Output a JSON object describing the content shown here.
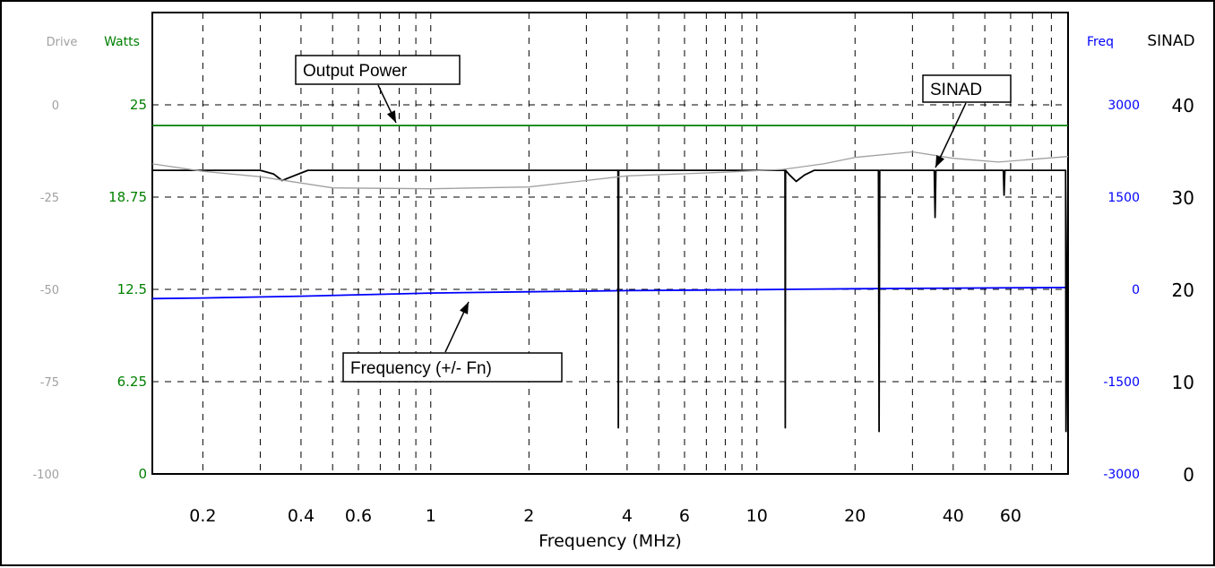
{
  "chart_data": {
    "type": "line",
    "xlabel": "Frequency (MHz)",
    "x_scale": "log",
    "xlim": [
      0.14,
      90
    ],
    "x_ticks": [
      {
        "value": 0.2,
        "label": "0.2"
      },
      {
        "value": 0.4,
        "label": "0.4"
      },
      {
        "value": 0.6,
        "label": "0.6"
      },
      {
        "value": 1,
        "label": "1"
      },
      {
        "value": 2,
        "label": "2"
      },
      {
        "value": 4,
        "label": "4"
      },
      {
        "value": 6,
        "label": "6"
      },
      {
        "value": 10,
        "label": "10"
      },
      {
        "value": 20,
        "label": "20"
      },
      {
        "value": 40,
        "label": "40"
      },
      {
        "value": 60,
        "label": "60"
      }
    ],
    "x_grid_minor": [
      0.3,
      0.5,
      0.7,
      0.8,
      0.9,
      3,
      5,
      7,
      8,
      9,
      30,
      50,
      70,
      80
    ],
    "grid": true,
    "axes": {
      "drive": {
        "label": "Drive",
        "ticks": [
          "0",
          "-25",
          "-50",
          "-75",
          "-100"
        ],
        "color": "#a0a0a0"
      },
      "watts": {
        "label": "Watts",
        "ylim": [
          0,
          31.25
        ],
        "ticks": [
          "25",
          "18.75",
          "12.5",
          "6.25",
          "0"
        ],
        "color": "#008000"
      },
      "freq": {
        "label": "Freq",
        "ylim": [
          -3000,
          4500
        ],
        "ticks": [
          "3000",
          "1500",
          "0",
          "-1500",
          "-3000"
        ],
        "color": "#0000ff"
      },
      "sinad": {
        "label": "SINAD",
        "ylim": [
          0,
          50
        ],
        "ticks": [
          "40",
          "30",
          "20",
          "10",
          "0"
        ],
        "color": "#000000"
      }
    },
    "series": [
      {
        "key": "output_power",
        "axis": "watts",
        "color": "#008000",
        "points": [
          [
            0.14,
            23.6
          ],
          [
            90,
            23.6
          ]
        ]
      },
      {
        "key": "frequency",
        "axis": "freq",
        "color": "#0000ff",
        "points": [
          [
            0.14,
            -150
          ],
          [
            0.2,
            -140
          ],
          [
            0.4,
            -110
          ],
          [
            0.7,
            -80
          ],
          [
            1,
            -60
          ],
          [
            2,
            -40
          ],
          [
            4,
            -20
          ],
          [
            10,
            -5
          ],
          [
            20,
            10
          ],
          [
            40,
            20
          ],
          [
            90,
            30
          ]
        ]
      },
      {
        "key": "sinad_black",
        "axis": "sinad",
        "color": "#000000",
        "points": [
          [
            0.14,
            32.9
          ],
          [
            0.3,
            32.9
          ],
          [
            0.33,
            32.5
          ],
          [
            0.35,
            31.8
          ],
          [
            0.38,
            32.3
          ],
          [
            0.42,
            32.9
          ],
          [
            3.0,
            32.9
          ],
          [
            3.75,
            32.9
          ],
          [
            3.76,
            5
          ],
          [
            3.77,
            32.9
          ],
          [
            12.0,
            32.9
          ],
          [
            12.2,
            32.9
          ],
          [
            12.22,
            5
          ],
          [
            12.24,
            32.9
          ],
          [
            12.6,
            32.4
          ],
          [
            13.2,
            31.7
          ],
          [
            14.0,
            32.4
          ],
          [
            15.0,
            32.9
          ],
          [
            23.6,
            32.9
          ],
          [
            23.7,
            4.6
          ],
          [
            23.8,
            32.9
          ],
          [
            35.0,
            32.9
          ],
          [
            35.2,
            27.8
          ],
          [
            35.4,
            32.9
          ],
          [
            57.0,
            32.9
          ],
          [
            57.3,
            30.2
          ],
          [
            57.6,
            32.9
          ],
          [
            88.5,
            32.9
          ],
          [
            88.7,
            4.6
          ],
          [
            90,
            32.9
          ]
        ]
      },
      {
        "key": "sinad_gray",
        "axis": "sinad",
        "color": "#a0a0a0",
        "points": [
          [
            0.14,
            33.6
          ],
          [
            0.2,
            32.8
          ],
          [
            0.3,
            32.2
          ],
          [
            0.5,
            31.0
          ],
          [
            1,
            30.9
          ],
          [
            2,
            31.1
          ],
          [
            4,
            32.3
          ],
          [
            8,
            32.7
          ],
          [
            12,
            33.0
          ],
          [
            16,
            33.6
          ],
          [
            20,
            34.3
          ],
          [
            30,
            34.9
          ],
          [
            40,
            34.2
          ],
          [
            55,
            33.8
          ],
          [
            70,
            34.1
          ],
          [
            90,
            34.4
          ]
        ]
      }
    ],
    "annotations": [
      {
        "key": "output_power_label",
        "text": "Output Power"
      },
      {
        "key": "frequency_label",
        "text": "Frequency (+/- Fn)"
      },
      {
        "key": "sinad_label",
        "text": "SINAD"
      }
    ]
  }
}
